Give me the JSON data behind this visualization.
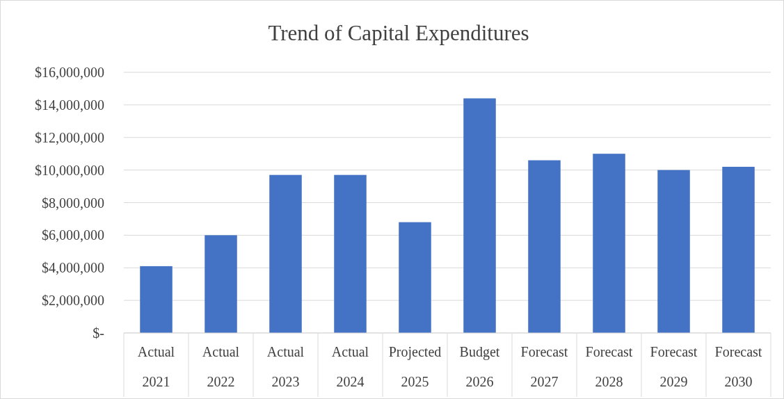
{
  "chart_data": {
    "type": "bar",
    "title": "Trend of Capital Expenditures",
    "categories": [
      "Actual\n2021",
      "Actual\n2022",
      "Actual\n2023",
      "Actual\n2024",
      "Projected\n2025",
      "Budget\n2026",
      "Forecast\n2027",
      "Forecast\n2028",
      "Forecast\n2029",
      "Forecast\n2030"
    ],
    "values": [
      4100000,
      6000000,
      9700000,
      9700000,
      6800000,
      14400000,
      10600000,
      11000000,
      10000000,
      10200000
    ],
    "color": "#4472c4",
    "ylim": [
      0,
      16000000
    ],
    "yticks": [
      {
        "value": 0,
        "label": "$-"
      },
      {
        "value": 2000000,
        "label": "$2,000,000"
      },
      {
        "value": 4000000,
        "label": "$4,000,000"
      },
      {
        "value": 6000000,
        "label": "$6,000,000"
      },
      {
        "value": 8000000,
        "label": "$8,000,000"
      },
      {
        "value": 10000000,
        "label": "$10,000,000"
      },
      {
        "value": 12000000,
        "label": "$12,000,000"
      },
      {
        "value": 14000000,
        "label": "$14,000,000"
      },
      {
        "value": 16000000,
        "label": "$16,000,000"
      }
    ],
    "grid": "y"
  }
}
